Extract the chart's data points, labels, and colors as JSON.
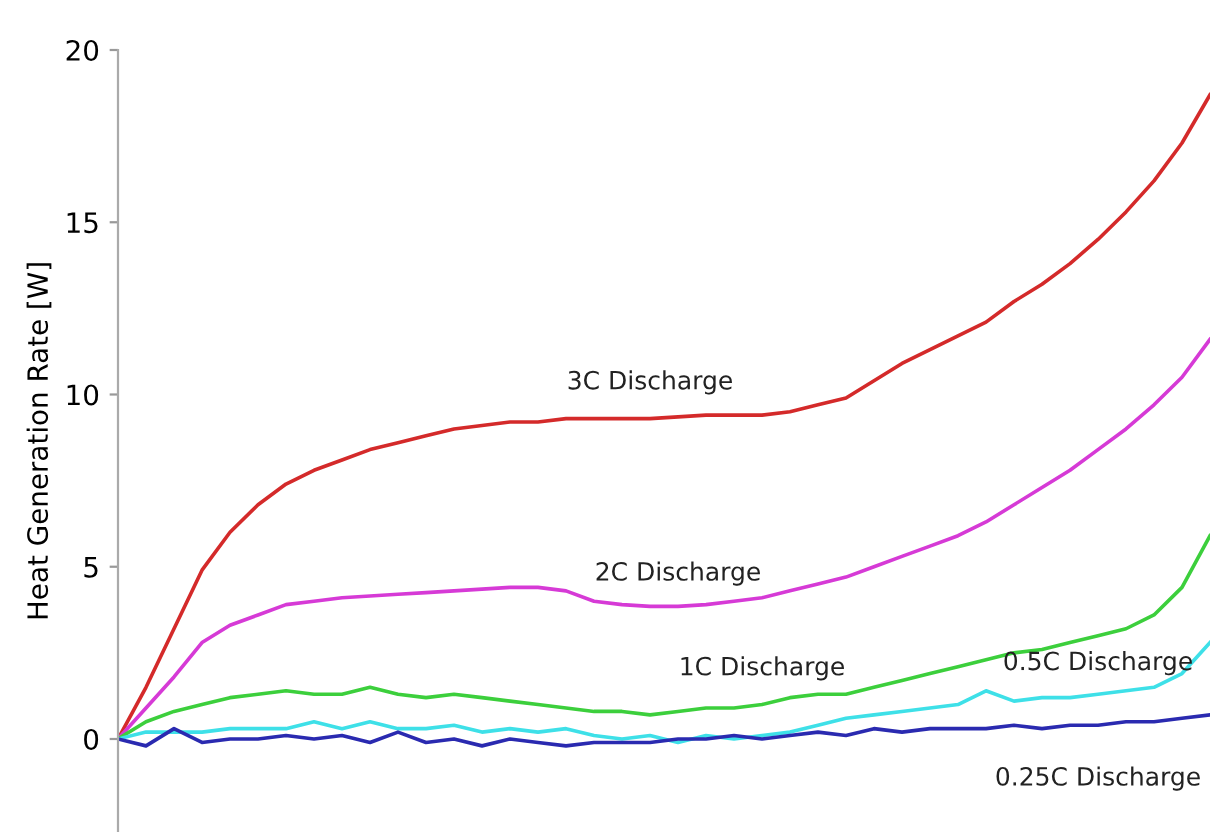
{
  "chart_data": {
    "type": "line",
    "ylabel": "Heat Generation Rate [W]",
    "categories": [
      null,
      null,
      null,
      null,
      null,
      null,
      null,
      null,
      null,
      null,
      null,
      null,
      null,
      null,
      null,
      null,
      null,
      null,
      null,
      null,
      null,
      null,
      null,
      null,
      null,
      null,
      null,
      null,
      null,
      null,
      null,
      null,
      null,
      null,
      null,
      null,
      null,
      null,
      null,
      null
    ],
    "ylim": [
      -2.7,
      20
    ],
    "yticks": [
      0,
      5,
      10,
      15,
      20
    ],
    "grid": false,
    "legend": false,
    "marker": "none",
    "line_style": "solid",
    "tick_labels": "y",
    "series": [
      {
        "name": "3C Discharge",
        "color": "#d42a2a",
        "values": [
          0,
          1.5,
          3.2,
          4.9,
          6.0,
          6.8,
          7.4,
          7.8,
          8.1,
          8.4,
          8.6,
          8.8,
          9.0,
          9.1,
          9.2,
          9.2,
          9.3,
          9.3,
          9.3,
          9.3,
          9.35,
          9.4,
          9.4,
          9.4,
          9.5,
          9.7,
          9.9,
          10.4,
          10.9,
          11.3,
          11.7,
          12.1,
          12.7,
          13.2,
          13.8,
          14.5,
          15.3,
          16.2,
          17.3,
          18.7
        ]
      },
      {
        "name": "2C Discharge",
        "color": "#d63ad6",
        "values": [
          0,
          0.9,
          1.8,
          2.8,
          3.3,
          3.6,
          3.9,
          4.0,
          4.1,
          4.15,
          4.2,
          4.25,
          4.3,
          4.35,
          4.4,
          4.4,
          4.3,
          4.0,
          3.9,
          3.85,
          3.85,
          3.9,
          4.0,
          4.1,
          4.3,
          4.5,
          4.7,
          5.0,
          5.3,
          5.6,
          5.9,
          6.3,
          6.8,
          7.3,
          7.8,
          8.4,
          9.0,
          9.7,
          10.5,
          11.6
        ]
      },
      {
        "name": "1C Discharge",
        "color": "#3ccf3c",
        "values": [
          0,
          0.5,
          0.8,
          1.0,
          1.2,
          1.3,
          1.4,
          1.3,
          1.3,
          1.5,
          1.3,
          1.2,
          1.3,
          1.2,
          1.1,
          1.0,
          0.9,
          0.8,
          0.8,
          0.7,
          0.8,
          0.9,
          0.9,
          1.0,
          1.2,
          1.3,
          1.3,
          1.5,
          1.7,
          1.9,
          2.1,
          2.3,
          2.5,
          2.6,
          2.8,
          3.0,
          3.2,
          3.6,
          4.4,
          5.9
        ]
      },
      {
        "name": "0.5C Discharge",
        "color": "#3ee0e8",
        "values": [
          0,
          0.2,
          0.2,
          0.2,
          0.3,
          0.3,
          0.3,
          0.5,
          0.3,
          0.5,
          0.3,
          0.3,
          0.4,
          0.2,
          0.3,
          0.2,
          0.3,
          0.1,
          0.0,
          0.1,
          -0.1,
          0.1,
          0.0,
          0.1,
          0.2,
          0.4,
          0.6,
          0.7,
          0.8,
          0.9,
          1.0,
          1.4,
          1.1,
          1.2,
          1.2,
          1.3,
          1.4,
          1.5,
          1.9,
          2.8
        ]
      },
      {
        "name": "0.25C Discharge",
        "color": "#2a2ab0",
        "values": [
          0,
          -0.2,
          0.3,
          -0.1,
          0.0,
          0.0,
          0.1,
          0.0,
          0.1,
          -0.1,
          0.2,
          -0.1,
          0.0,
          -0.2,
          0.0,
          -0.1,
          -0.2,
          -0.1,
          -0.1,
          -0.1,
          0.0,
          0.0,
          0.1,
          0.0,
          0.1,
          0.2,
          0.1,
          0.3,
          0.2,
          0.3,
          0.3,
          0.3,
          0.4,
          0.3,
          0.4,
          0.4,
          0.5,
          0.5,
          0.6,
          0.7
        ]
      }
    ]
  }
}
